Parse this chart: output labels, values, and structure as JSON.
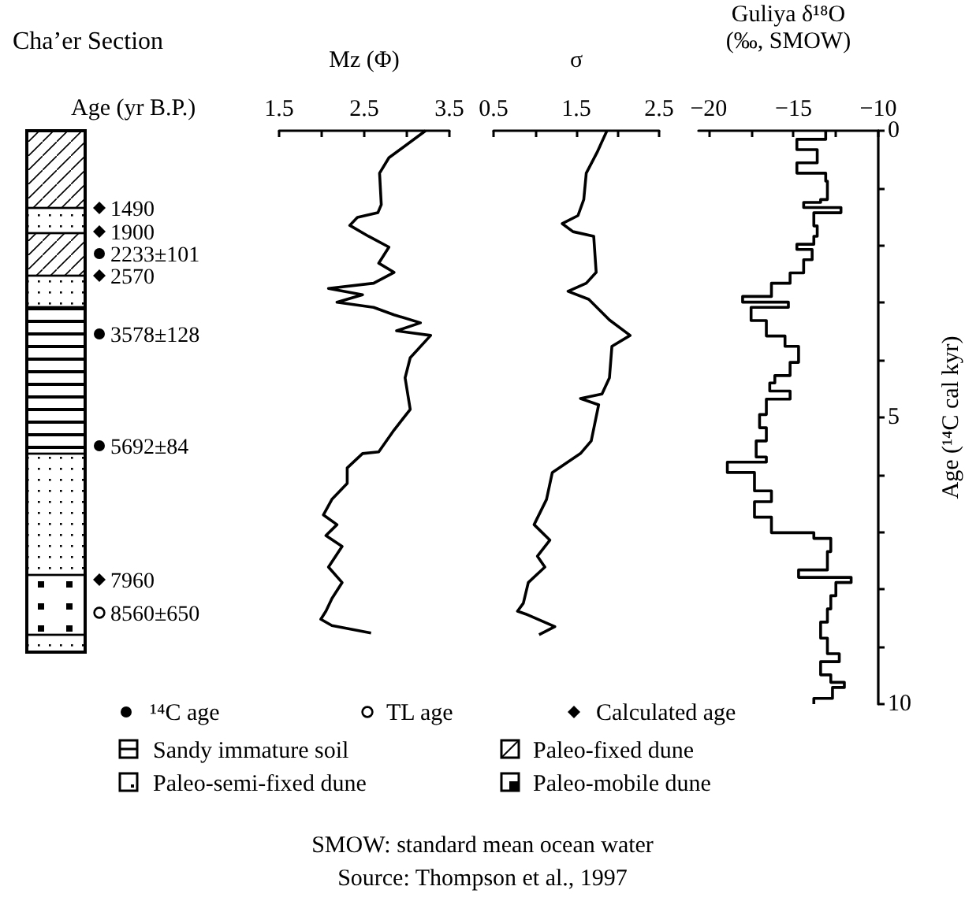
{
  "chart_data": [
    {
      "type": "other",
      "title": "Cha’er Section",
      "annotations": [
        "Age (yr B.P.)",
        "1490",
        "1900",
        "2233±101",
        "2570",
        "3578±128",
        "5692±84",
        "7960",
        "8560±650",
        "¹⁴C age",
        "TL age",
        "Calculated age",
        "Sandy immature soil",
        "Paleo-fixed dune",
        "Paleo-semi-fixed dune",
        "Paleo-mobile dune",
        "SMOW: standard mean ocean water",
        "Source: Thompson et al., 1997"
      ]
    },
    {
      "type": "line",
      "orientation": "horizontal",
      "xlabel": "Mz (Φ)",
      "color": "#000000",
      "marker": "none",
      "line_style": "solid",
      "tick_labels": "x",
      "xlim": [
        1.5,
        3.5
      ],
      "xticks": [
        1.5,
        {
          "value": 2,
          "label": null
        },
        2.5,
        {
          "value": 3,
          "label": null
        },
        3.5
      ],
      "ylim": [
        10,
        0
      ],
      "x": [
        0.0,
        0.47,
        0.74,
        1.29,
        1.43,
        1.51,
        1.65,
        1.84,
        2.03,
        2.31,
        2.47,
        2.66,
        2.75,
        2.86,
        2.99,
        3.08,
        3.21,
        3.35,
        3.49,
        3.57,
        3.96,
        4.31,
        4.86,
        5.22,
        5.6,
        5.63,
        5.88,
        6.15,
        6.43,
        6.7,
        6.87,
        7.06,
        7.25,
        7.61,
        7.88,
        8.16,
        8.38,
        8.52,
        8.63,
        8.76
      ],
      "values": [
        3.22,
        2.79,
        2.68,
        2.7,
        2.66,
        2.42,
        2.33,
        2.55,
        2.79,
        2.67,
        2.85,
        2.61,
        2.08,
        2.48,
        2.18,
        2.61,
        2.85,
        3.16,
        2.88,
        3.28,
        3.04,
        2.98,
        3.04,
        2.85,
        2.67,
        2.48,
        2.3,
        2.3,
        2.12,
        2.02,
        2.18,
        2.05,
        2.24,
        2.08,
        2.24,
        2.12,
        2.05,
        1.99,
        2.12,
        2.58
      ]
    },
    {
      "type": "line",
      "orientation": "horizontal",
      "xlabel": "σ",
      "color": "#000000",
      "marker": "none",
      "line_style": "solid",
      "tick_labels": "x",
      "xlim": [
        0.5,
        2.5
      ],
      "xticks": [
        0.5,
        {
          "value": 1,
          "label": null
        },
        1.5,
        {
          "value": 2,
          "label": null
        },
        2.5
      ],
      "ylim": [
        10,
        0
      ],
      "x": [
        0.0,
        0.38,
        0.74,
        1.2,
        1.48,
        1.62,
        1.76,
        1.84,
        2.47,
        2.66,
        2.8,
        2.94,
        3.3,
        3.57,
        3.76,
        4.31,
        4.59,
        4.67,
        4.78,
        5.41,
        5.63,
        5.96,
        6.43,
        6.87,
        7.14,
        7.42,
        7.61,
        7.88,
        8.24,
        8.38,
        8.43,
        8.65,
        8.79
      ],
      "values": [
        1.87,
        1.75,
        1.62,
        1.59,
        1.52,
        1.33,
        1.46,
        1.71,
        1.74,
        1.62,
        1.4,
        1.65,
        1.9,
        2.15,
        1.93,
        1.9,
        1.81,
        1.55,
        1.77,
        1.68,
        1.55,
        1.21,
        1.14,
        0.99,
        1.18,
        1.03,
        1.12,
        0.92,
        0.86,
        0.79,
        0.89,
        1.24,
        1.05
      ]
    },
    {
      "type": "step",
      "orientation": "horizontal",
      "xlabel": "Guliya δ¹⁸O\n(‰, SMOW)",
      "ylabel": "Age (¹⁴C cal kyr)",
      "color": "#000000",
      "marker": "none",
      "line_style": "solid",
      "xlim": [
        -20.6,
        -10
      ],
      "xticks": [
        {
          "value": -20,
          "label": "−20"
        },
        {
          "value": -17.5,
          "label": null
        },
        {
          "value": -15,
          "label": "−15"
        },
        {
          "value": -12.5,
          "label": null
        },
        {
          "value": -10,
          "label": "−10"
        }
      ],
      "ylim": [
        10,
        0
      ],
      "yticks": [
        0,
        {
          "value": 1,
          "label": null
        },
        {
          "value": 2,
          "label": null
        },
        {
          "value": 3,
          "label": null
        },
        {
          "value": 4,
          "label": null
        },
        5,
        {
          "value": 6,
          "label": null
        },
        {
          "value": 7,
          "label": null
        },
        {
          "value": 8,
          "label": null
        },
        {
          "value": 9,
          "label": null
        },
        10
      ],
      "x": [
        0,
        0.15,
        0.33,
        0.56,
        0.74,
        0.88,
        1.2,
        1.25,
        1.34,
        1.43,
        1.66,
        1.84,
        1.98,
        2.07,
        2.25,
        2.48,
        2.66,
        2.89,
        2.99,
        3.08,
        3.31,
        3.58,
        3.76,
        4.04,
        4.27,
        4.4,
        4.54,
        4.68,
        4.95,
        5.18,
        5.41,
        5.69,
        5.78,
        5.96,
        6.28,
        6.47,
        6.74,
        7.01,
        7.11,
        7.34,
        7.66,
        7.79,
        7.88,
        8.11,
        8.34,
        8.57,
        8.85,
        9.12,
        9.26,
        9.49,
        9.62,
        9.71,
        9.9,
        10
      ],
      "values": [
        -13.1,
        -14.8,
        -13.6,
        -14.8,
        -13.1,
        -13,
        -13.4,
        -14.4,
        -12.2,
        -13.8,
        -13.6,
        -13.8,
        -14.8,
        -13.9,
        -14.4,
        -15.2,
        -16.3,
        -18,
        -15.3,
        -17.5,
        -16.6,
        -15.5,
        -14.7,
        -15.2,
        -16.1,
        -16.4,
        -15.2,
        -16.6,
        -17,
        -16.6,
        -17.2,
        -16.6,
        -18.9,
        -17.3,
        -16.3,
        -17.3,
        -16.3,
        -13.8,
        -12.8,
        -13,
        -14.7,
        -11.6,
        -12.5,
        -12.8,
        -13,
        -13.4,
        -13,
        -12.3,
        -13.4,
        -12.8,
        -12,
        -12.7,
        -13.8,
        -13.8
      ]
    }
  ]
}
